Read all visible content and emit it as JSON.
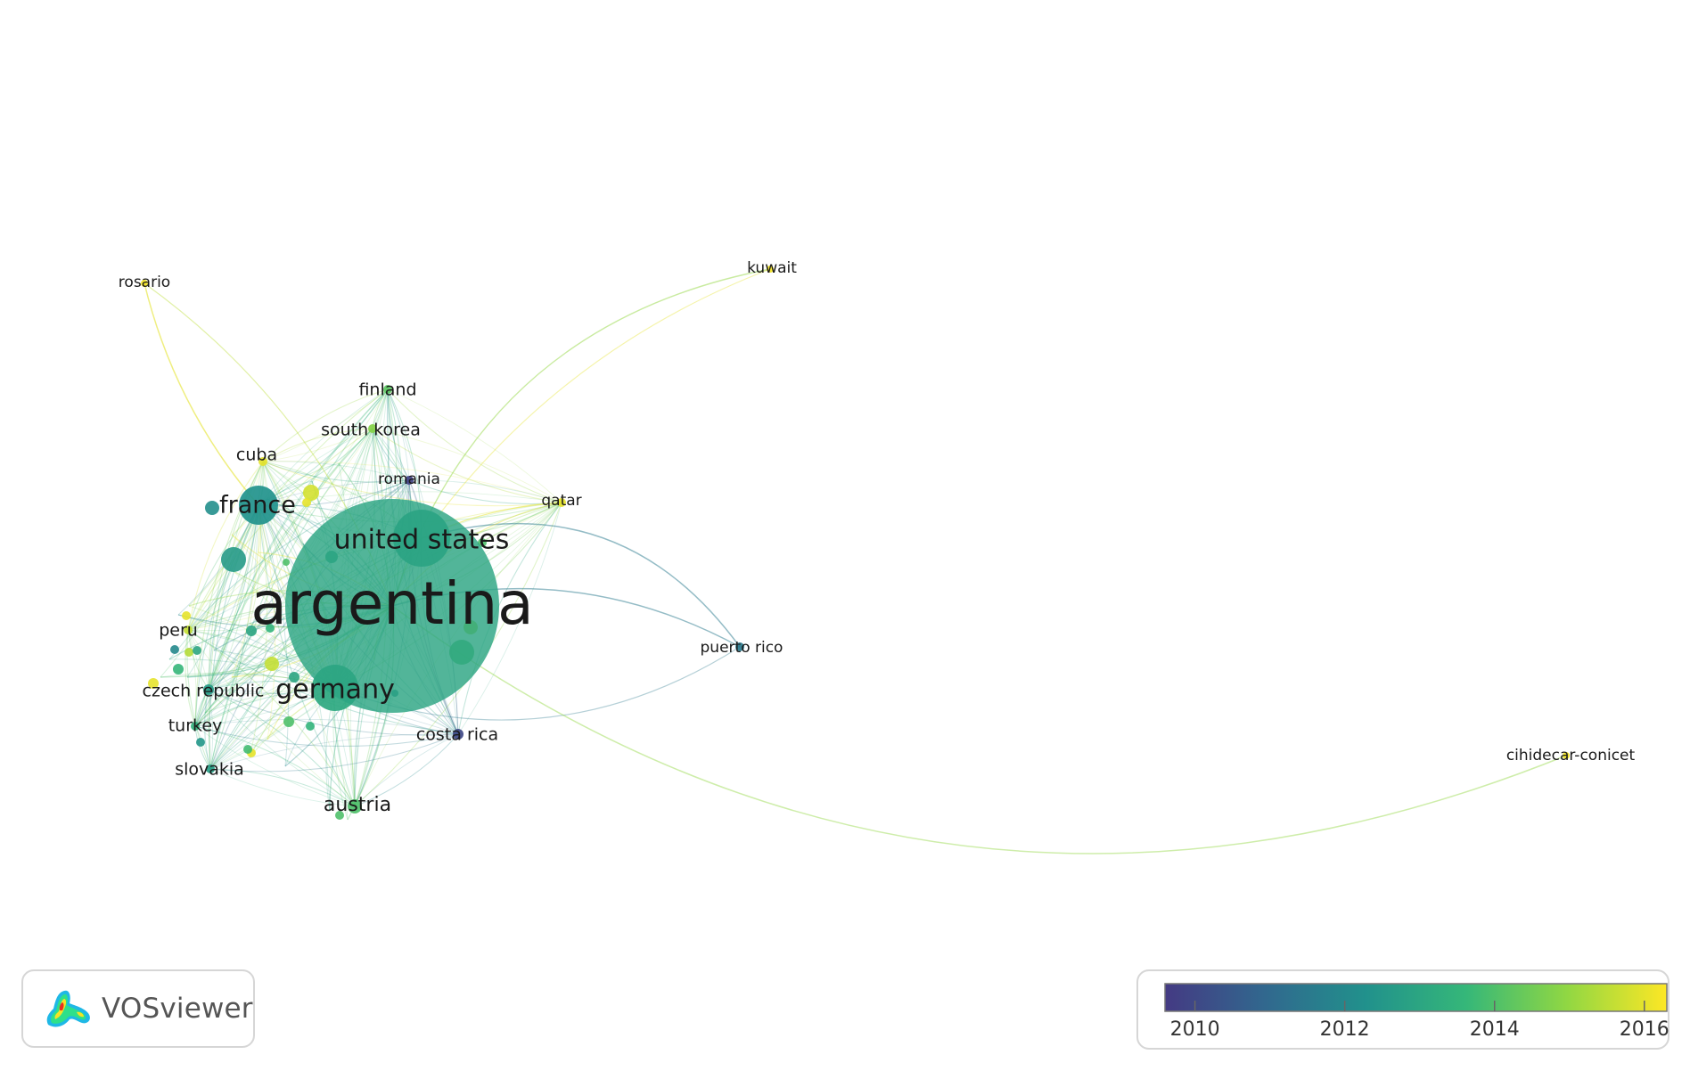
{
  "app": {
    "name": "VOSviewer"
  },
  "colors": {
    "low": "#3b4a8a",
    "mid": "#22a58a",
    "high": "#f2e524",
    "edge": "#7dd3b0"
  },
  "legend": {
    "min": 2009.6,
    "max": 2016.3,
    "ticks": [
      "2010",
      "2012",
      "2014",
      "2016"
    ]
  },
  "nodes": [
    {
      "id": "argentina",
      "label": "argentina",
      "year": 2013.0,
      "weight": 100,
      "font": 66
    },
    {
      "id": "united_states",
      "label": "united states",
      "year": 2012.7,
      "weight": 22,
      "font": 30
    },
    {
      "id": "france",
      "label": "france",
      "year": 2012.3,
      "weight": 15,
      "font": 27
    },
    {
      "id": "germany",
      "label": "germany",
      "year": 2013.1,
      "weight": 16,
      "font": 30
    },
    {
      "id": "austria",
      "label": "austria",
      "year": 2014.0,
      "weight": 5,
      "font": 22
    },
    {
      "id": "finland",
      "label": "finland",
      "year": 2014.2,
      "weight": 3,
      "font": 19
    },
    {
      "id": "south_korea",
      "label": "south korea",
      "year": 2014.8,
      "weight": 3,
      "font": 19
    },
    {
      "id": "cuba",
      "label": "cuba",
      "year": 2016.0,
      "weight": 3,
      "font": 19
    },
    {
      "id": "romania",
      "label": "romania",
      "year": 2009.8,
      "weight": 2,
      "font": 17
    },
    {
      "id": "qatar",
      "label": "qatar",
      "year": 2016.0,
      "weight": 2,
      "font": 17
    },
    {
      "id": "peru",
      "label": "peru",
      "year": 2015.6,
      "weight": 3,
      "font": 19
    },
    {
      "id": "czech_republic",
      "label": "czech republic",
      "year": 2012.6,
      "weight": 3,
      "font": 19
    },
    {
      "id": "turkey",
      "label": "turkey",
      "year": 2013.4,
      "weight": 3,
      "font": 19
    },
    {
      "id": "slovakia",
      "label": "slovakia",
      "year": 2012.7,
      "weight": 3,
      "font": 19
    },
    {
      "id": "costa_rica",
      "label": "costa rica",
      "year": 2010.0,
      "weight": 3,
      "font": 19
    },
    {
      "id": "puerto_rico",
      "label": "puerto rico",
      "year": 2011.5,
      "weight": 2,
      "font": 17
    },
    {
      "id": "rosario",
      "label": "rosario",
      "year": 2016.2,
      "weight": 2,
      "font": 17
    },
    {
      "id": "kuwait",
      "label": "kuwait",
      "year": 2016.2,
      "weight": 2,
      "font": 17
    },
    {
      "id": "cihidecar_conicet",
      "label": "cihidecar-conicet",
      "year": 2016.2,
      "weight": 2,
      "font": 17
    }
  ]
}
